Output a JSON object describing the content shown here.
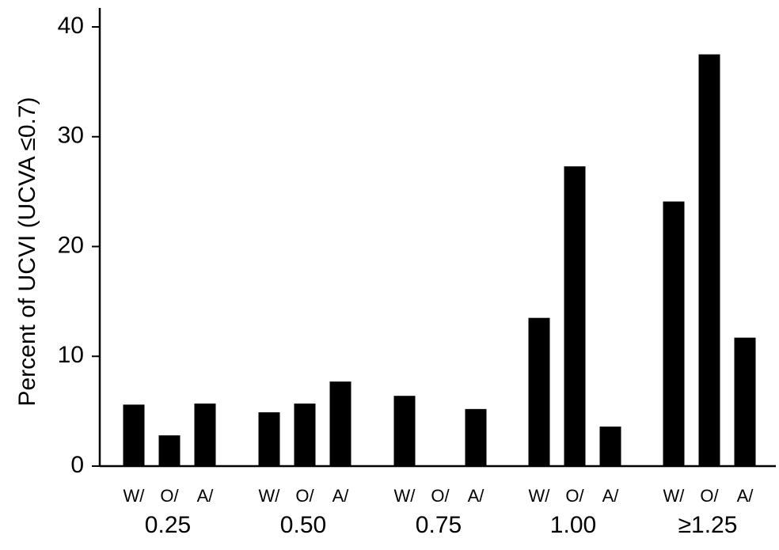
{
  "chart_data": {
    "type": "bar",
    "ylabel": "Percent of UCVI (UCVA ≤0.7)",
    "ylim": [
      0,
      41
    ],
    "yticks": [
      0,
      10,
      20,
      30,
      40
    ],
    "grid": false,
    "categories": [
      "0.25",
      "0.50",
      "0.75",
      "1.00",
      "≥1.25"
    ],
    "subcategories": [
      "W/",
      "O/",
      "A/"
    ],
    "groups": [
      {
        "label": "0.25",
        "values": [
          5.6,
          2.8,
          5.7
        ]
      },
      {
        "label": "0.50",
        "values": [
          4.9,
          5.7,
          7.7
        ]
      },
      {
        "label": "0.75",
        "values": [
          6.4,
          0,
          5.2
        ]
      },
      {
        "label": "1.00",
        "values": [
          13.5,
          27.3,
          3.6
        ]
      },
      {
        "label": "≥1.25",
        "values": [
          24.1,
          37.5,
          11.7
        ]
      }
    ]
  }
}
